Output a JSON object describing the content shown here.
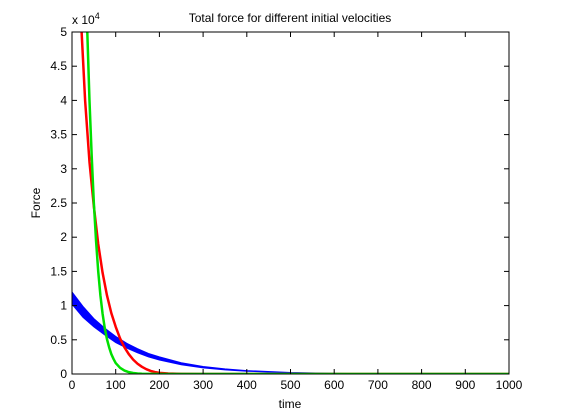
{
  "chart_data": {
    "type": "line",
    "title": "Total force for different initial velocities",
    "xlabel": "time",
    "ylabel": "Force",
    "xlim": [
      0,
      1000
    ],
    "ylim": [
      0,
      50000
    ],
    "y_exponent_label": "x 10",
    "y_exponent_power": "4",
    "x_ticks": [
      0,
      100,
      200,
      300,
      400,
      500,
      600,
      700,
      800,
      900,
      1000
    ],
    "x_tick_labels": [
      "0",
      "100",
      "200",
      "300",
      "400",
      "500",
      "600",
      "700",
      "800",
      "900",
      "1000"
    ],
    "y_ticks": [
      0,
      5000,
      10000,
      15000,
      20000,
      25000,
      30000,
      35000,
      40000,
      45000,
      50000
    ],
    "y_tick_labels": [
      "0",
      "0.5",
      "1",
      "1.5",
      "2",
      "2.5",
      "3",
      "3.5",
      "4",
      "4.5",
      "5"
    ],
    "grid": false,
    "series": [
      {
        "color": "#0000ff",
        "band": true,
        "x": [
          0,
          25,
          50,
          75,
          100,
          125,
          150,
          175,
          200,
          250,
          300,
          350,
          400,
          500,
          600,
          700,
          800,
          900,
          1000
        ],
        "y_upper": [
          12000,
          9900,
          8100,
          6700,
          5500,
          4500,
          3700,
          3000,
          2500,
          1650,
          1100,
          750,
          500,
          220,
          100,
          40,
          20,
          10,
          5
        ],
        "y_lower": [
          10200,
          8300,
          6900,
          5700,
          4600,
          3800,
          3100,
          2500,
          2050,
          1350,
          900,
          600,
          400,
          170,
          75,
          30,
          15,
          8,
          4
        ]
      },
      {
        "color": "#ff0000",
        "band": false,
        "x": [
          22,
          30,
          40,
          50,
          60,
          70,
          80,
          90,
          100,
          110,
          120,
          130,
          140,
          150,
          160,
          170,
          180,
          190,
          200,
          220,
          250,
          300,
          400,
          500,
          700,
          1000
        ],
        "y": [
          50000,
          40000,
          31000,
          24500,
          19000,
          14800,
          11500,
          8900,
          6900,
          5200,
          3900,
          2900,
          2100,
          1500,
          1050,
          700,
          450,
          280,
          170,
          70,
          20,
          5,
          0,
          0,
          0,
          0
        ]
      },
      {
        "color": "#00e000",
        "band": false,
        "x": [
          35,
          40,
          45,
          50,
          55,
          60,
          65,
          70,
          75,
          80,
          85,
          90,
          95,
          100,
          110,
          120,
          130,
          140,
          150,
          160,
          170,
          180,
          200,
          250,
          300,
          400,
          600,
          800,
          1000
        ],
        "y": [
          50000,
          40000,
          32000,
          25000,
          19500,
          15000,
          11500,
          8800,
          6700,
          5100,
          3900,
          2900,
          2200,
          1600,
          900,
          500,
          270,
          150,
          80,
          40,
          20,
          10,
          5,
          0,
          0,
          0,
          0,
          0,
          0
        ]
      }
    ]
  }
}
